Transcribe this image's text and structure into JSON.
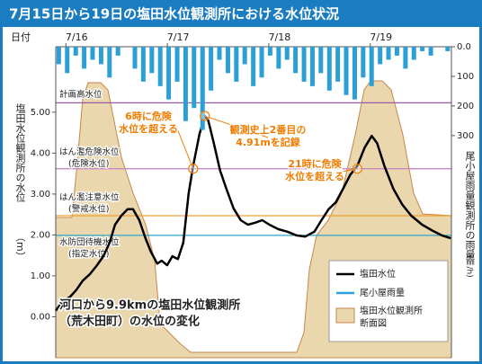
{
  "chart_data": {
    "type": "line",
    "title": "7月15日から19日の塩田水位観測所における水位状況",
    "x_axis_title": "日付",
    "y_axis_title": "塩田水位観測所の水位",
    "y_axis_unit": "（m）",
    "y2_axis_title": "尾小屋雨量観測所の雨量",
    "y2_axis_unit": "(㎜/h)",
    "xlim": [
      15.9,
      19.8
    ],
    "xticks": [
      {
        "value": 16,
        "label": "7/16"
      },
      {
        "value": 17,
        "label": "7/17"
      },
      {
        "value": 18,
        "label": "7/18"
      },
      {
        "value": 19,
        "label": "7/19"
      }
    ],
    "ylim": [
      -1.0,
      6.6
    ],
    "yticks": [
      {
        "value": 0,
        "label": "0.00"
      },
      {
        "value": 1,
        "label": "1.00"
      },
      {
        "value": 2,
        "label": "2.00"
      },
      {
        "value": 3,
        "label": "3.00"
      },
      {
        "value": 4,
        "label": "4.00"
      },
      {
        "value": 5,
        "label": "5.00"
      }
    ],
    "y2lim": [
      0,
      1050
    ],
    "y2_inverted": true,
    "y2ticks": [
      {
        "value": 0,
        "label": "0.0"
      },
      100,
      200,
      300
    ],
    "series": [
      {
        "name": "塩田水位",
        "type": "line",
        "color": "#000000",
        "x": [
          15.9,
          15.971,
          16.042,
          16.104,
          16.165,
          16.236,
          16.307,
          16.369,
          16.431,
          16.484,
          16.546,
          16.608,
          16.661,
          16.723,
          16.785,
          16.838,
          16.9,
          16.944,
          16.997,
          17.05,
          17.104,
          17.157,
          17.21,
          17.254,
          17.316,
          17.369,
          17.404,
          17.458,
          17.519,
          17.581,
          17.652,
          17.723,
          17.794,
          17.865,
          17.935,
          18.006,
          18.095,
          18.183,
          18.272,
          18.36,
          18.449,
          18.519,
          18.59,
          18.661,
          18.732,
          18.803,
          18.873,
          18.944,
          19.015,
          19.068,
          19.139,
          19.227,
          19.316,
          19.404,
          19.511,
          19.617,
          19.705,
          19.794
        ],
        "values": [
          0.15,
          0.38,
          0.49,
          0.66,
          0.88,
          1.04,
          1.26,
          1.48,
          1.81,
          2.25,
          2.47,
          2.63,
          2.63,
          2.36,
          1.92,
          1.59,
          1.3,
          1.37,
          1.26,
          1.48,
          1.41,
          1.81,
          3.02,
          3.69,
          4.46,
          4.91,
          4.79,
          4.24,
          3.58,
          3.13,
          2.65,
          2.36,
          2.25,
          2.3,
          2.36,
          2.25,
          2.14,
          2.08,
          1.99,
          1.96,
          2.08,
          2.36,
          2.63,
          2.8,
          3.13,
          3.47,
          3.69,
          4.13,
          4.42,
          4.24,
          3.69,
          3.13,
          2.74,
          2.47,
          2.25,
          2.1,
          1.99,
          1.92
        ]
      },
      {
        "name": "尾小屋雨量",
        "type": "bar",
        "axis": "y2",
        "color": "#2b9fd6",
        "x": [
          15.93,
          16.013,
          16.097,
          16.18,
          16.263,
          16.347,
          16.43,
          16.513,
          16.597,
          16.68,
          16.763,
          16.847,
          16.93,
          17.013,
          17.097,
          17.18,
          17.263,
          17.347,
          17.43,
          17.513,
          17.597,
          17.68,
          17.763,
          17.847,
          17.93,
          18.013,
          18.097,
          18.18,
          18.263,
          18.347,
          18.43,
          18.513,
          18.597,
          18.68,
          18.763,
          18.847,
          18.93,
          19.013,
          19.097,
          19.18,
          19.263,
          19.347,
          19.43,
          19.513,
          19.597,
          19.68,
          19.763
        ],
        "values": [
          59,
          89,
          30,
          74,
          44,
          59,
          104,
          30,
          0,
          74,
          118,
          89,
          133,
          178,
          118,
          251,
          207,
          281,
          148,
          44,
          89,
          118,
          59,
          133,
          104,
          30,
          74,
          44,
          89,
          118,
          133,
          89,
          148,
          118,
          163,
          178,
          104,
          133,
          59,
          44,
          30,
          74,
          44,
          15,
          30,
          0,
          15
        ]
      }
    ],
    "section_legend": [
      "塩田水位観測所",
      "断面図"
    ],
    "section_color": "#ead7ad",
    "levels": [
      {
        "lines": [
          "計画高水位"
        ],
        "value": 5.23,
        "color": "#9b5ba3"
      },
      {
        "lines": [
          "はん濫危険水位",
          "(危険水位)"
        ],
        "value": 3.62,
        "color": "#c98ac4"
      },
      {
        "lines": [
          "はん濫注意水位",
          "(警戒水位)"
        ],
        "value": 2.47,
        "color": "#f0a030"
      },
      {
        "lines": [
          "水防団待機水位",
          "(指定水位)"
        ],
        "value": 1.99,
        "color": "#2aa6c9"
      }
    ],
    "annotations": [
      {
        "text": [
          "6時に危険",
          "水位を超える"
        ],
        "x": 17.254,
        "y": 3.62
      },
      {
        "text": [
          "観測史上2番目の",
          "4.91mを記録"
        ],
        "x": 17.369,
        "y": 4.91
      },
      {
        "text": [
          "21時に危険",
          "水位を超える"
        ],
        "x": 18.873,
        "y": 3.62
      }
    ],
    "caption": [
      "河口から9.9kmの塩田水位観測所",
      "（荒木田町）の水位の変化"
    ]
  }
}
